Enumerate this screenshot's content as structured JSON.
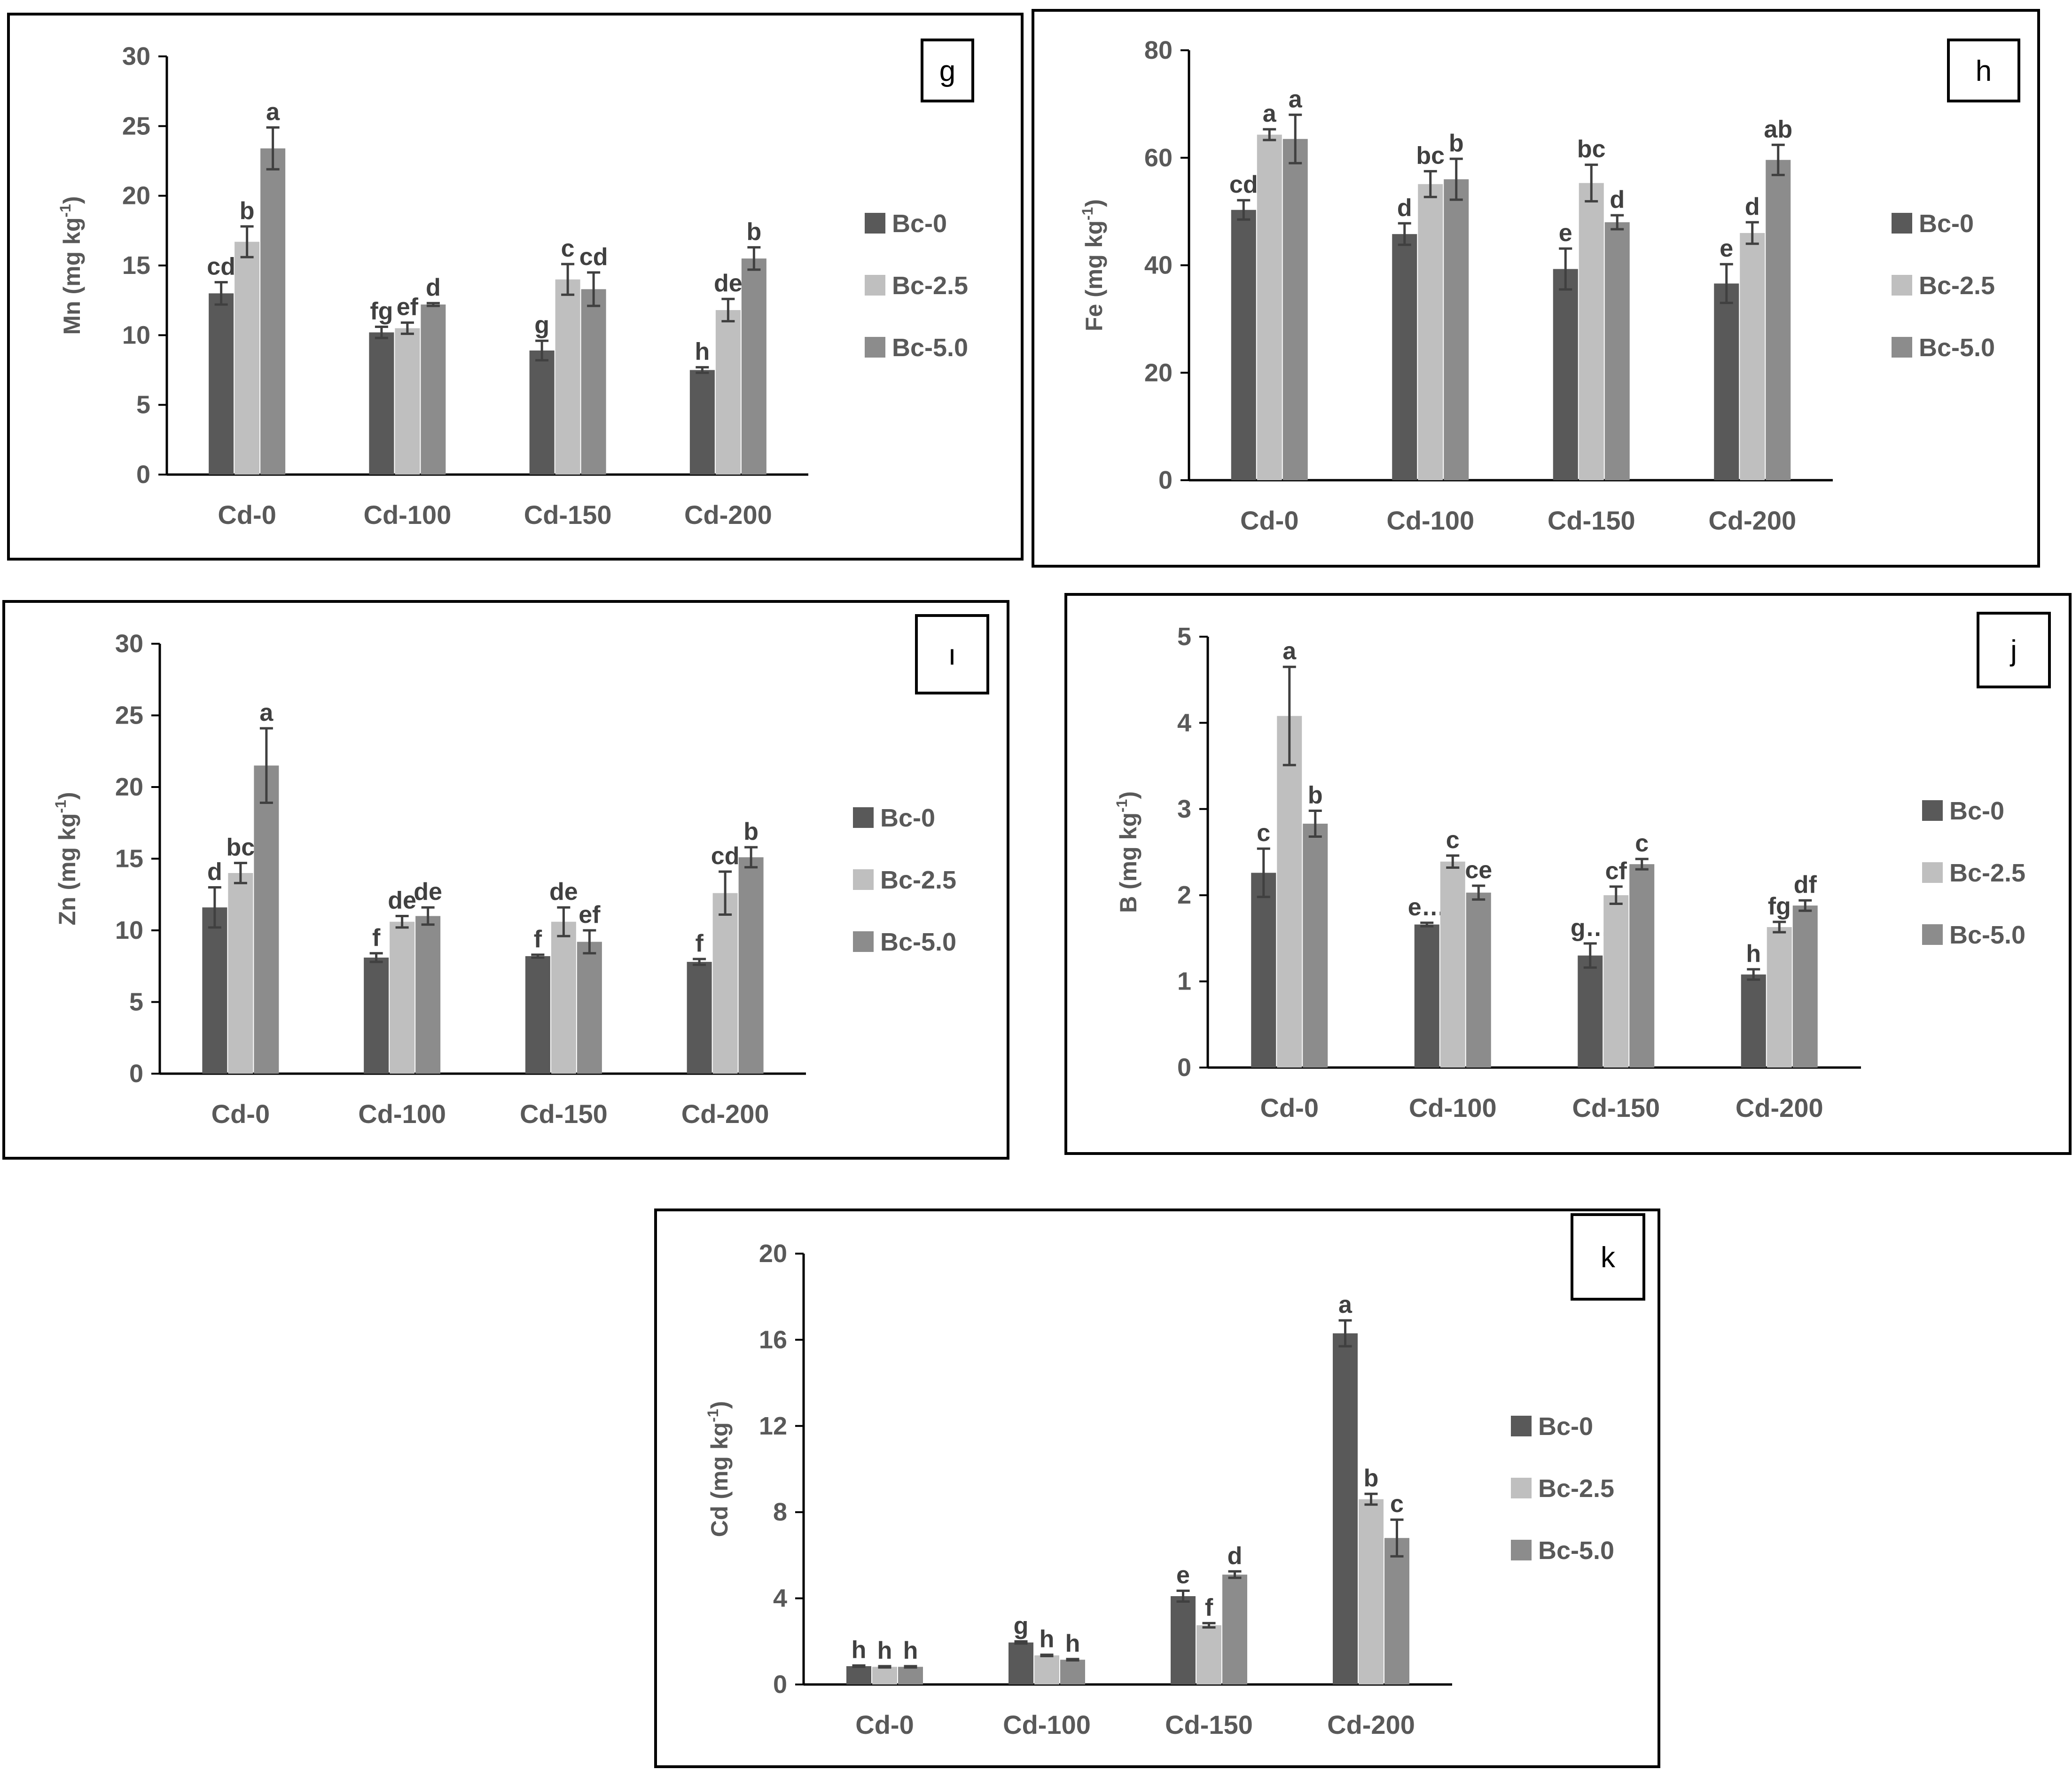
{
  "colors": {
    "Bc-0": "#595959",
    "Bc-2.5": "#bfbfbf",
    "Bc-5.0": "#8c8c8c"
  },
  "chart_data": [
    {
      "type": "bar",
      "panel": "g",
      "ylabel": "Mn (mg kg-1)",
      "ylim": [
        0,
        30
      ],
      "yticks": [
        0,
        5,
        10,
        15,
        20,
        25,
        30
      ],
      "categories": [
        "Cd-0",
        "Cd-100",
        "Cd-150",
        "Cd-200"
      ],
      "series": [
        {
          "name": "Bc-0",
          "values": [
            13.0,
            10.2,
            8.9,
            7.5
          ],
          "errors": [
            0.8,
            0.4,
            0.7,
            0.2
          ],
          "labels": [
            "cd",
            "fg",
            "g",
            "h"
          ]
        },
        {
          "name": "Bc-2.5",
          "values": [
            16.7,
            10.5,
            14.0,
            11.8
          ],
          "errors": [
            1.1,
            0.4,
            1.1,
            0.8
          ],
          "labels": [
            "b",
            "ef",
            "c",
            "de"
          ]
        },
        {
          "name": "Bc-5.0",
          "values": [
            23.4,
            12.2,
            13.3,
            15.5
          ],
          "errors": [
            1.5,
            0.1,
            1.2,
            0.8
          ],
          "labels": [
            "a",
            "d",
            "cd",
            "b"
          ]
        }
      ]
    },
    {
      "type": "bar",
      "panel": "h",
      "ylabel": "Fe (mg kg-1)",
      "ylim": [
        0,
        80
      ],
      "yticks": [
        0,
        20,
        40,
        60,
        80
      ],
      "categories": [
        "Cd-0",
        "Cd-100",
        "Cd-150",
        "Cd-200"
      ],
      "series": [
        {
          "name": "Bc-0",
          "values": [
            50.3,
            45.8,
            39.3,
            36.6
          ],
          "errors": [
            1.8,
            2.0,
            3.8,
            3.6
          ],
          "labels": [
            "cd",
            "d",
            "e",
            "e"
          ]
        },
        {
          "name": "Bc-2.5",
          "values": [
            64.3,
            55.1,
            55.3,
            46.0
          ],
          "errors": [
            1.0,
            2.4,
            3.4,
            2.0
          ],
          "labels": [
            "a",
            "bc",
            "bc",
            "d"
          ]
        },
        {
          "name": "Bc-5.0",
          "values": [
            63.5,
            56.0,
            48.0,
            59.6
          ],
          "errors": [
            4.5,
            3.8,
            1.3,
            2.8
          ],
          "labels": [
            "a",
            "b",
            "d",
            "ab"
          ]
        }
      ]
    },
    {
      "type": "bar",
      "panel": "ı",
      "ylabel": "Zn (mg kg-1)",
      "ylim": [
        0,
        30
      ],
      "yticks": [
        0,
        5,
        10,
        15,
        20,
        25,
        30
      ],
      "categories": [
        "Cd-0",
        "Cd-100",
        "Cd-150",
        "Cd-200"
      ],
      "series": [
        {
          "name": "Bc-0",
          "values": [
            11.6,
            8.1,
            8.2,
            7.8
          ],
          "errors": [
            1.4,
            0.3,
            0.1,
            0.2
          ],
          "labels": [
            "d",
            "f",
            "f",
            "f"
          ]
        },
        {
          "name": "Bc-2.5",
          "values": [
            14.0,
            10.6,
            10.6,
            12.6
          ],
          "errors": [
            0.7,
            0.4,
            1.0,
            1.5
          ],
          "labels": [
            "bc",
            "de",
            "de",
            "cd"
          ]
        },
        {
          "name": "Bc-5.0",
          "values": [
            21.5,
            11.0,
            9.2,
            15.1
          ],
          "errors": [
            2.6,
            0.6,
            0.8,
            0.7
          ],
          "labels": [
            "a",
            "de",
            "ef",
            "b"
          ]
        }
      ]
    },
    {
      "type": "bar",
      "panel": "j",
      "ylabel": "B (mg kg-1)",
      "ylim": [
        0,
        5
      ],
      "yticks": [
        0,
        1,
        2,
        3,
        4,
        5
      ],
      "categories": [
        "Cd-0",
        "Cd-100",
        "Cd-150",
        "Cd-200"
      ],
      "series": [
        {
          "name": "Bc-0",
          "values": [
            2.26,
            1.66,
            1.3,
            1.08
          ],
          "errors": [
            0.28,
            0.02,
            0.14,
            0.06
          ],
          "labels": [
            "c",
            "e…",
            "g…",
            "h"
          ]
        },
        {
          "name": "Bc-2.5",
          "values": [
            4.08,
            2.39,
            2.0,
            1.63
          ],
          "errors": [
            0.57,
            0.07,
            0.1,
            0.06
          ],
          "labels": [
            "a",
            "c",
            "cf",
            "fg"
          ]
        },
        {
          "name": "Bc-5.0",
          "values": [
            2.83,
            2.03,
            2.36,
            1.88
          ],
          "errors": [
            0.15,
            0.08,
            0.06,
            0.06
          ],
          "labels": [
            "b",
            "ce",
            "c",
            "df"
          ]
        }
      ]
    },
    {
      "type": "bar",
      "panel": "k",
      "ylabel": "Cd (mg kg-1)",
      "ylim": [
        0,
        20
      ],
      "yticks": [
        0,
        4,
        8,
        12,
        16,
        20
      ],
      "categories": [
        "Cd-0",
        "Cd-100",
        "Cd-150",
        "Cd-200"
      ],
      "series": [
        {
          "name": "Bc-0",
          "values": [
            0.85,
            1.95,
            4.1,
            16.3
          ],
          "errors": [
            0.03,
            0.05,
            0.25,
            0.6
          ],
          "labels": [
            "h",
            "g",
            "e",
            "a"
          ]
        },
        {
          "name": "Bc-2.5",
          "values": [
            0.82,
            1.35,
            2.75,
            8.6
          ],
          "errors": [
            0.03,
            0.03,
            0.1,
            0.25
          ],
          "labels": [
            "h",
            "h",
            "f",
            "b"
          ]
        },
        {
          "name": "Bc-5.0",
          "values": [
            0.82,
            1.15,
            5.1,
            6.8
          ],
          "errors": [
            0.03,
            0.03,
            0.15,
            0.85
          ],
          "labels": [
            "h",
            "h",
            "d",
            "c"
          ]
        }
      ]
    }
  ]
}
